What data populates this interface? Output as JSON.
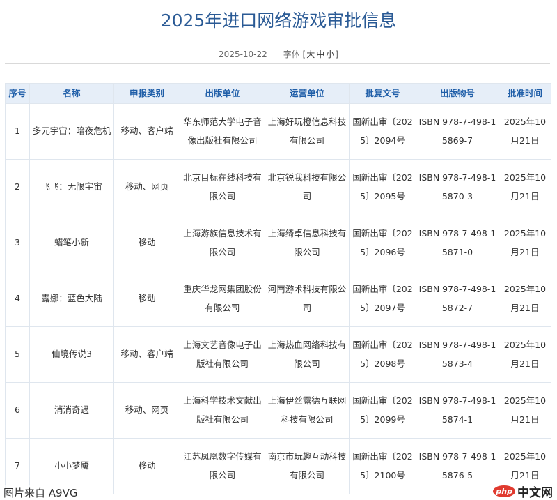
{
  "page": {
    "title": "2025年进口网络游戏审批信息",
    "date": "2025-10-22",
    "font_label": "字体",
    "font_sizes": [
      "大",
      "中",
      "小"
    ]
  },
  "table": {
    "headers": [
      "序号",
      "名称",
      "申报类别",
      "出版单位",
      "运营单位",
      "批复文号",
      "出版物号",
      "批准时间"
    ],
    "rows": [
      [
        "1",
        "多元宇宙：暗夜危机",
        "移动、客户端",
        "华东师范大学电子音像出版社有限公司",
        "上海好玩橙信息科技有限公司",
        "国新出审〔2025〕2094号",
        "ISBN 978-7-498-15869-7",
        "2025年10月21日"
      ],
      [
        "2",
        "飞飞：无限宇宙",
        "移动、网页",
        "北京目标在线科技有限公司",
        "北京锐我科技有限公司",
        "国新出审〔2025〕2095号",
        "ISBN 978-7-498-15870-3",
        "2025年10月21日"
      ],
      [
        "3",
        "蜡笔小新",
        "移动",
        "上海游族信息技术有限公司",
        "上海绮卓信息科技有限公司",
        "国新出审〔2025〕2096号",
        "ISBN 978-7-498-15871-0",
        "2025年10月21日"
      ],
      [
        "4",
        "露娜：蓝色大陆",
        "移动",
        "重庆华龙网集团股份有限公司",
        "河南游术科技有限公司",
        "国新出审〔2025〕2097号",
        "ISBN 978-7-498-15872-7",
        "2025年10月21日"
      ],
      [
        "5",
        "仙境传说3",
        "移动、客户端",
        "上海文艺音像电子出版社有限公司",
        "上海热血网络科技有限公司",
        "国新出审〔2025〕2098号",
        "ISBN 978-7-498-15873-4",
        "2025年10月21日"
      ],
      [
        "6",
        "消消奇遇",
        "移动、网页",
        "上海科学技术文献出版社有限公司",
        "上海伊丝露德互联网科技有限公司",
        "国新出审〔2025〕2099号",
        "ISBN 978-7-498-15874-1",
        "2025年10月21日"
      ],
      [
        "7",
        "小小梦魇",
        "移动",
        "江苏凤凰数字传媒有限公司",
        "南京市玩趣互动科技有限公司",
        "国新出审〔2025〕2100号",
        "ISBN 978-7-498-15876-5",
        "2025年10月21日"
      ]
    ]
  },
  "watermarks": {
    "source": "图片来自 A9VG",
    "logo_php": "php",
    "logo_cn": "中文网"
  },
  "colors": {
    "title": "#2a5a95",
    "header_bg": "#e6eef8",
    "header_text": "#1f5ea8"
  }
}
